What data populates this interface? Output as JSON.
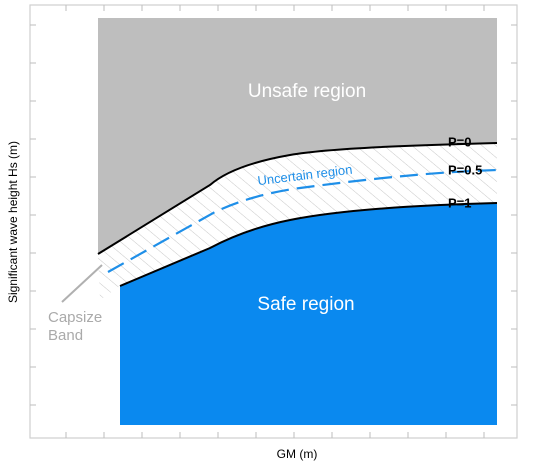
{
  "axes": {
    "x_label": "GM (m)",
    "y_label": "Significant wave height Hs (m)"
  },
  "regions": {
    "unsafe": "Unsafe region",
    "uncertain": "Uncertain region",
    "safe": "Safe region"
  },
  "curves": [
    {
      "label": "P=0"
    },
    {
      "label": "P=0.5"
    },
    {
      "label": "P=1"
    }
  ],
  "capsize_band": [
    "Capsize",
    "Band"
  ]
}
